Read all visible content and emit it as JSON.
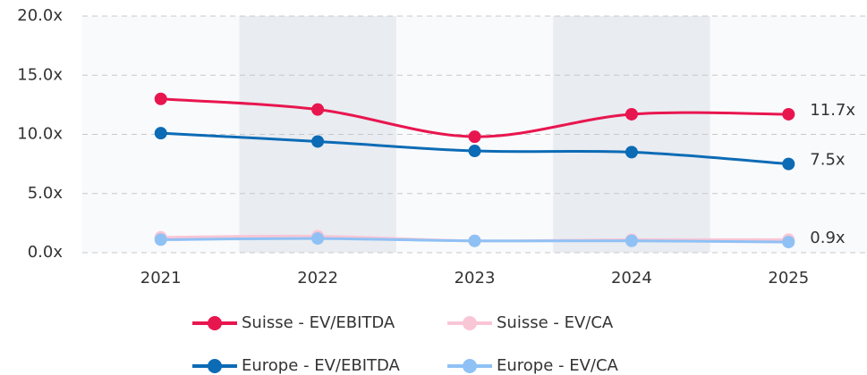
{
  "chart_data": {
    "type": "line",
    "categories": [
      "2021",
      "2022",
      "2023",
      "2024",
      "2025"
    ],
    "series": [
      {
        "name": "Suisse - EV/EBITDA",
        "color": "#e8164f",
        "values": [
          13.0,
          12.1,
          9.8,
          11.7,
          11.7
        ],
        "value_labels": [
          null,
          null,
          null,
          null,
          "11.7x"
        ]
      },
      {
        "name": "Suisse - EV/CA",
        "color": "#f9c6d6",
        "values": [
          1.3,
          1.4,
          1.0,
          1.1,
          1.1
        ]
      },
      {
        "name": "Europe - EV/EBITDA",
        "color": "#0c6bb5",
        "values": [
          10.1,
          9.4,
          8.6,
          8.5,
          7.5
        ],
        "value_labels": [
          null,
          null,
          null,
          null,
          "7.5x"
        ]
      },
      {
        "name": "Europe - EV/CA",
        "color": "#8fc1f5",
        "values": [
          1.1,
          1.2,
          1.0,
          1.0,
          0.9
        ],
        "value_labels": [
          null,
          null,
          null,
          null,
          "0.9x"
        ]
      }
    ],
    "ylim": [
      0,
      20
    ],
    "yticks": [
      {
        "value": 0,
        "label": "0.0x"
      },
      {
        "value": 5,
        "label": "5.0x"
      },
      {
        "value": 10,
        "label": "10.0x"
      },
      {
        "value": 15,
        "label": "15.0x"
      },
      {
        "value": 20,
        "label": "20.0x"
      }
    ],
    "grid": true
  }
}
